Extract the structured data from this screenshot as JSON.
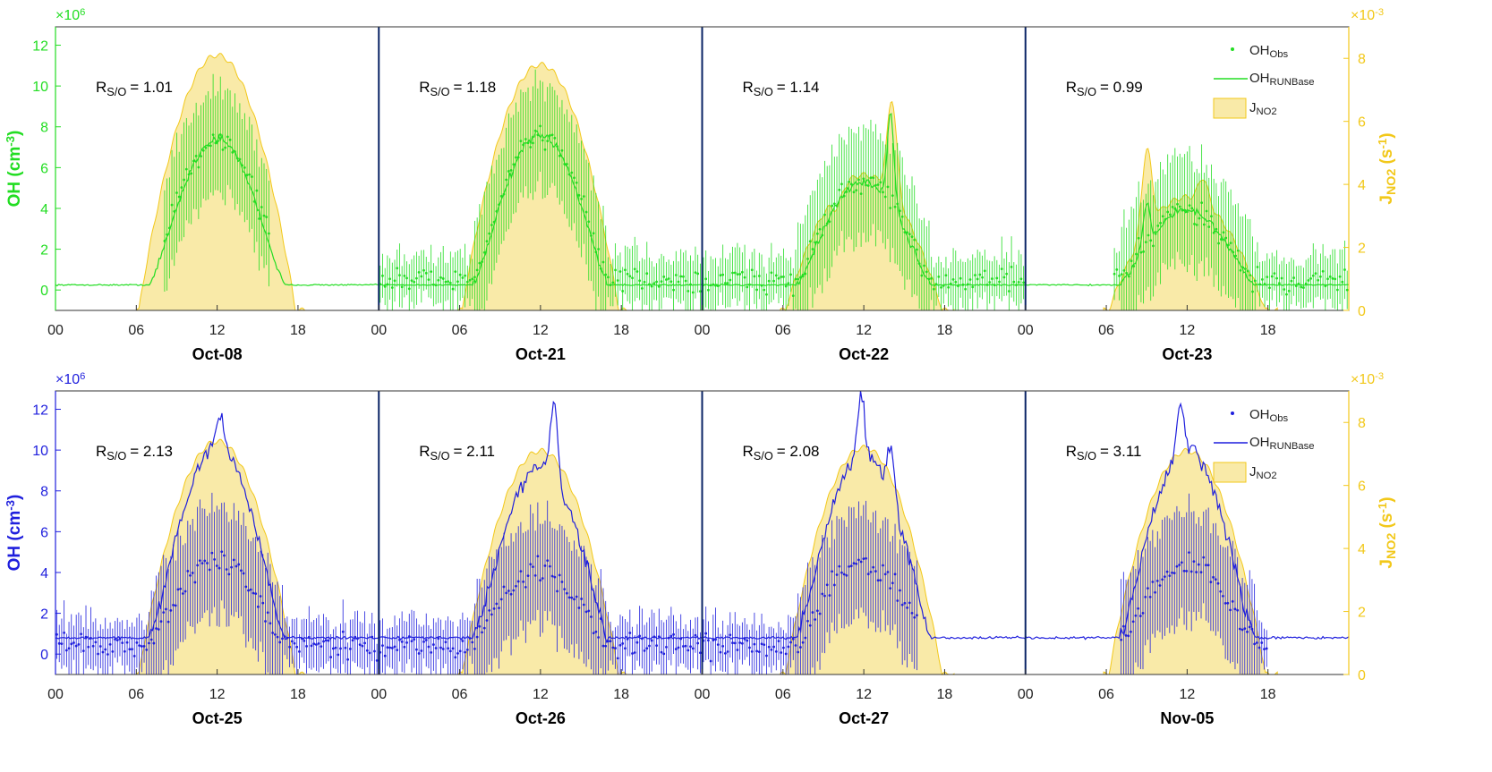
{
  "colors": {
    "top": "#22dd22",
    "bottom": "#1f1fdd",
    "jno2_fill": "#f9eaa8",
    "jno2_line": "#f2c81a",
    "jno2_axis": "#f2c81a",
    "divider": "#0a2466",
    "frame": "#333333"
  },
  "chart_data": [
    {
      "type": "line",
      "panel": "top",
      "ylabel_left": "OH (cm-3)",
      "ylabel_right": "JNO2 (s-1)",
      "left_exponent_label": "×10",
      "left_exponent": "6",
      "right_exponent_label": "×10",
      "right_exponent": "-3",
      "ylim_left": [
        -1.0,
        12.9
      ],
      "ylim_right": [
        0,
        9
      ],
      "yticks_left": [
        0,
        2,
        4,
        6,
        8,
        10,
        12
      ],
      "yticks_right": [
        0,
        2,
        4,
        6,
        8
      ],
      "xtick_labels": [
        "00",
        "06",
        "12",
        "18",
        "00",
        "06",
        "12",
        "18",
        "00",
        "06",
        "12",
        "18",
        "00",
        "06",
        "12",
        "18"
      ],
      "legend": {
        "position": "top-right",
        "obs": "OH",
        "obs_sub": "Obs",
        "model": "OH",
        "model_sub": "RUNBase",
        "j": "J",
        "j_sub": "NO2"
      },
      "days": [
        {
          "label": "Oct-08",
          "ratio_text": "= 1.01",
          "obs": true,
          "obs_range": [
            8.0,
            16.0
          ],
          "oh_peak": 7.4,
          "oh_spike": [],
          "j_peak": 8.1,
          "j_spikes": []
        },
        {
          "label": "Oct-21",
          "ratio_text": "= 1.18",
          "obs": true,
          "obs_range": [
            0.0,
            24.0
          ],
          "oh_peak": 7.6,
          "oh_spike": [],
          "j_peak": 7.8,
          "j_spikes": []
        },
        {
          "label": "Oct-22",
          "ratio_text": "= 1.14",
          "obs": true,
          "obs_range": [
            0.0,
            24.0
          ],
          "oh_peak": 5.3,
          "oh_spike": [
            [
              14.0,
              9.8
            ]
          ],
          "j_peak": 4.3,
          "j_spikes": [
            [
              14.1,
              7.1
            ],
            [
              10.0,
              3.6
            ]
          ]
        },
        {
          "label": "Oct-23",
          "ratio_text": "= 0.99",
          "obs": true,
          "obs_range": [
            6.5,
            24.0
          ],
          "oh_peak": 3.9,
          "oh_spike": [
            [
              9.0,
              6.0
            ]
          ],
          "j_peak": 3.6,
          "j_spikes": [
            [
              9.0,
              6.0
            ],
            [
              13.2,
              4.2
            ]
          ]
        }
      ],
      "ratio_label": "R",
      "ratio_sub": "S/O"
    },
    {
      "type": "line",
      "panel": "bottom",
      "ylabel_left": "OH (cm-3)",
      "ylabel_right": "JNO2 (s-1)",
      "left_exponent_label": "×10",
      "left_exponent": "6",
      "right_exponent_label": "×10",
      "right_exponent": "-3",
      "ylim_left": [
        -1.0,
        12.9
      ],
      "ylim_right": [
        0,
        9
      ],
      "yticks_left": [
        0,
        2,
        4,
        6,
        8,
        10,
        12
      ],
      "yticks_right": [
        0,
        2,
        4,
        6,
        8
      ],
      "xtick_labels": [
        "00",
        "06",
        "12",
        "18",
        "00",
        "06",
        "12",
        "18",
        "00",
        "06",
        "12",
        "18",
        "00",
        "06",
        "12",
        "18"
      ],
      "legend": {
        "position": "top-right",
        "obs": "OH",
        "obs_sub": "Obs",
        "model": "OH",
        "model_sub": "RUNBase",
        "j": "J",
        "j_sub": "NO2"
      },
      "days": [
        {
          "label": "Oct-25",
          "ratio_text": "= 2.13",
          "obs": true,
          "obs_range": [
            0.0,
            24.0
          ],
          "oh_peak": 10.2,
          "oh_spike": [
            [
              12.2,
              11.8
            ]
          ],
          "j_peak": 7.4,
          "j_spikes": []
        },
        {
          "label": "Oct-26",
          "ratio_text": "= 2.11",
          "obs": true,
          "obs_range": [
            0.0,
            24.0
          ],
          "oh_peak": 9.2,
          "oh_spike": [
            [
              13.0,
              13.0
            ]
          ],
          "j_peak": 7.1,
          "j_spikes": []
        },
        {
          "label": "Oct-27",
          "ratio_text": "= 2.08",
          "obs": true,
          "obs_range": [
            0.0,
            16.0
          ],
          "oh_peak": 9.8,
          "oh_spike": [
            [
              11.8,
              12.8
            ],
            [
              14.0,
              12.2
            ]
          ],
          "j_peak": 7.2,
          "j_spikes": []
        },
        {
          "label": "Nov-05",
          "ratio_text": "= 3.11",
          "obs": true,
          "obs_range": [
            7.0,
            18.0
          ],
          "oh_peak": 10.0,
          "oh_spike": [
            [
              11.5,
              12.4
            ]
          ],
          "j_peak": 7.1,
          "j_spikes": []
        }
      ],
      "ratio_label": "R",
      "ratio_sub": "S/O"
    }
  ]
}
